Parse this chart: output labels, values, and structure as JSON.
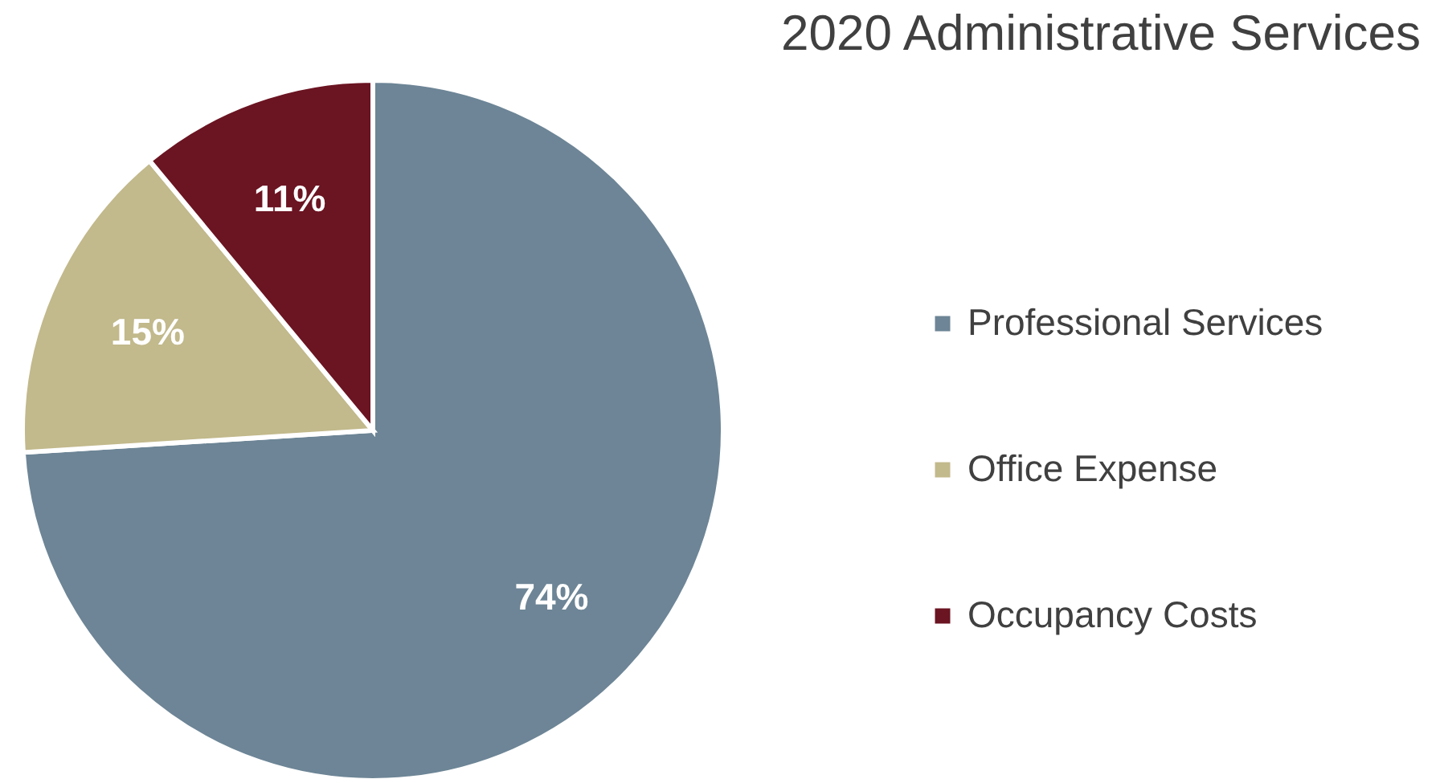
{
  "chart_data": {
    "type": "pie",
    "title": "2020 Administrative Services",
    "categories": [
      "Professional Services",
      "Office Expense",
      "Occupancy Costs"
    ],
    "values": [
      74,
      15,
      11
    ],
    "colors": [
      "#6d8596",
      "#c2b98c",
      "#6b1422"
    ],
    "value_labels": [
      "74%",
      "15%",
      "11%"
    ],
    "legend": "right"
  }
}
